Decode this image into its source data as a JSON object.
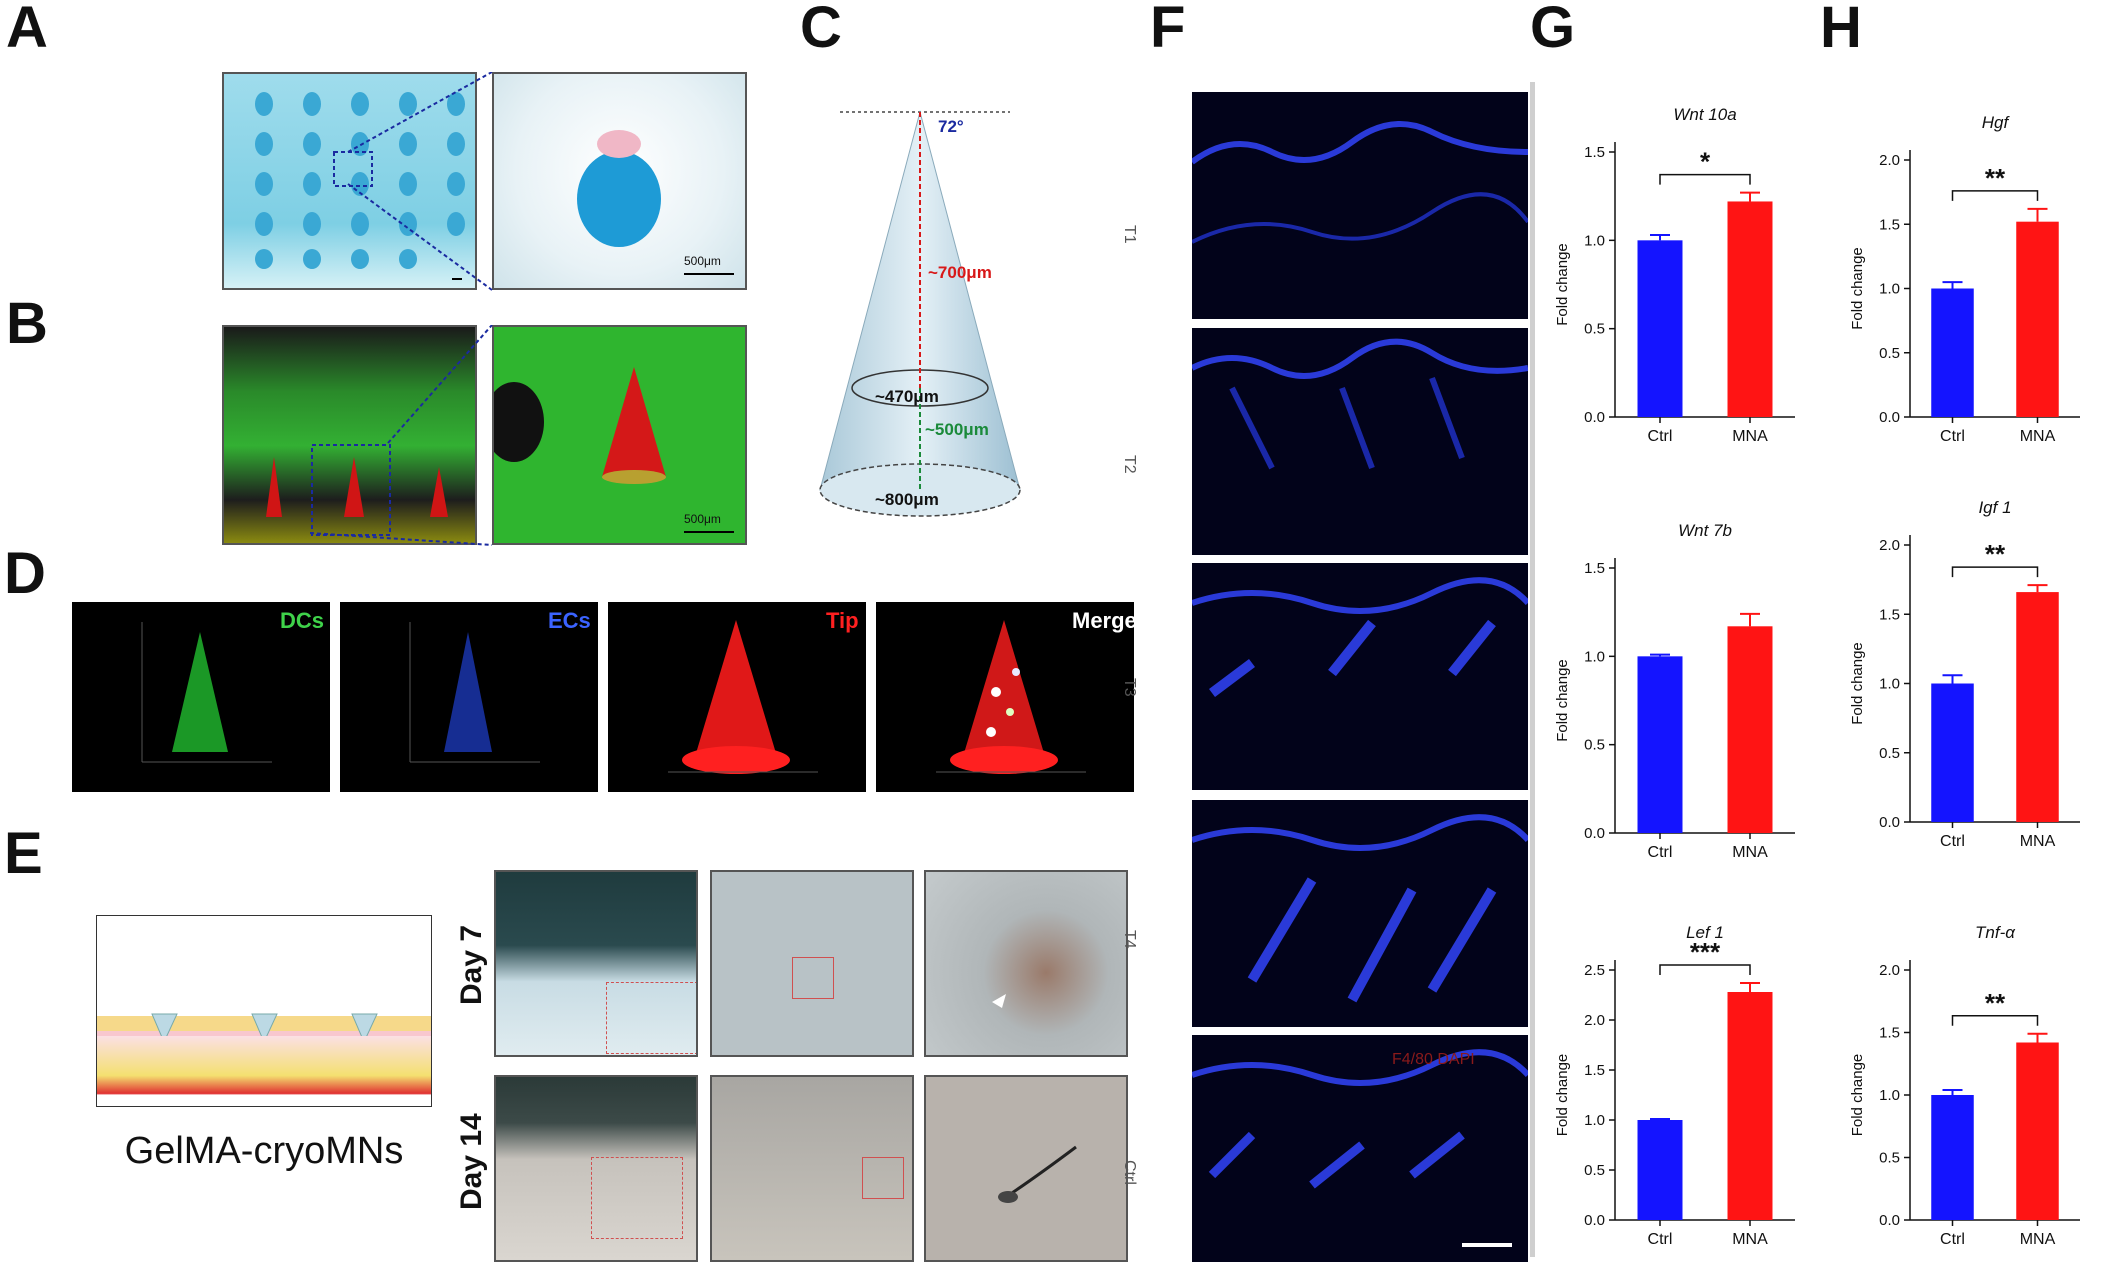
{
  "panels": {
    "A": "A",
    "B": "B",
    "C": "C",
    "D": "D",
    "E": "E",
    "F": "F",
    "G": "G",
    "H": "H"
  },
  "panelA": {
    "scale": "500μm"
  },
  "panelB": {
    "scale": "500μm"
  },
  "panelC": {
    "angle": "72°",
    "height_top": "~700μm",
    "diam_mid": "~470μm",
    "height_bottom": "~500μm",
    "diam_base": "~800μm"
  },
  "panelD": {
    "labels": [
      "DCs",
      "ECs",
      "Tip",
      "Merge"
    ],
    "colors": [
      "#3fd24a",
      "#3b63ff",
      "#ff2020",
      "#ffffff"
    ]
  },
  "panelE": {
    "title": "GelMA-cryoMNs",
    "day7": "Day 7",
    "day14": "Day 14"
  },
  "panelF": {
    "rows": [
      "T1",
      "T2",
      "T3",
      "T4",
      "Ctrl"
    ],
    "stain": "F4/80 DAPI"
  },
  "colors": {
    "ctrl": "#1414ff",
    "mna": "#ff1414"
  },
  "chart_data": [
    {
      "type": "bar",
      "title": "Wnt 10a",
      "categories": [
        "Ctrl",
        "MNA"
      ],
      "values": [
        1.0,
        1.22
      ],
      "errors": [
        0.03,
        0.05
      ],
      "ylabel": "Fold change",
      "ylim": [
        0,
        1.5
      ],
      "yticks": [
        "0.0",
        "0.5",
        "1.0",
        "1.5"
      ],
      "tickvals": [
        0,
        0.5,
        1.0,
        1.5
      ],
      "significance": "*"
    },
    {
      "type": "bar",
      "title": "Wnt 7b",
      "categories": [
        "Ctrl",
        "MNA"
      ],
      "values": [
        1.0,
        1.17
      ],
      "errors": [
        0.01,
        0.07
      ],
      "ylabel": "Fold change",
      "ylim": [
        0,
        1.5
      ],
      "yticks": [
        "0.0",
        "0.5",
        "1.0",
        "1.5"
      ],
      "tickvals": [
        0,
        0.5,
        1.0,
        1.5
      ],
      "significance": ""
    },
    {
      "type": "bar",
      "title": "Lef 1",
      "categories": [
        "Ctrl",
        "MNA"
      ],
      "values": [
        1.0,
        2.28
      ],
      "errors": [
        0.01,
        0.09
      ],
      "ylabel": "Fold change",
      "ylim": [
        0,
        2.5
      ],
      "yticks": [
        "0.0",
        "0.5",
        "1.0",
        "1.5",
        "2.0",
        "2.5"
      ],
      "tickvals": [
        0,
        0.5,
        1.0,
        1.5,
        2.0,
        2.5
      ],
      "significance": "***"
    },
    {
      "type": "bar",
      "title": "Hgf",
      "categories": [
        "Ctrl",
        "MNA"
      ],
      "values": [
        1.0,
        1.52
      ],
      "errors": [
        0.05,
        0.1
      ],
      "ylabel": "Fold change",
      "ylim": [
        0,
        2.0
      ],
      "yticks": [
        "0.0",
        "0.5",
        "1.0",
        "1.5",
        "2.0"
      ],
      "tickvals": [
        0,
        0.5,
        1.0,
        1.5,
        2.0
      ],
      "significance": "**"
    },
    {
      "type": "bar",
      "title": "Igf 1",
      "categories": [
        "Ctrl",
        "MNA"
      ],
      "values": [
        1.0,
        1.66
      ],
      "errors": [
        0.06,
        0.05
      ],
      "ylabel": "Fold change",
      "ylim": [
        0,
        2.0
      ],
      "yticks": [
        "0.0",
        "0.5",
        "1.0",
        "1.5",
        "2.0"
      ],
      "tickvals": [
        0,
        0.5,
        1.0,
        1.5,
        2.0
      ],
      "significance": "**"
    },
    {
      "type": "bar",
      "title": "Tnf-α",
      "categories": [
        "Ctrl",
        "MNA"
      ],
      "values": [
        1.0,
        1.42
      ],
      "errors": [
        0.04,
        0.07
      ],
      "ylabel": "Fold change",
      "ylim": [
        0,
        2.0
      ],
      "yticks": [
        "0.0",
        "0.5",
        "1.0",
        "1.5",
        "2.0"
      ],
      "tickvals": [
        0,
        0.5,
        1.0,
        1.5,
        2.0
      ],
      "significance": "**"
    }
  ]
}
